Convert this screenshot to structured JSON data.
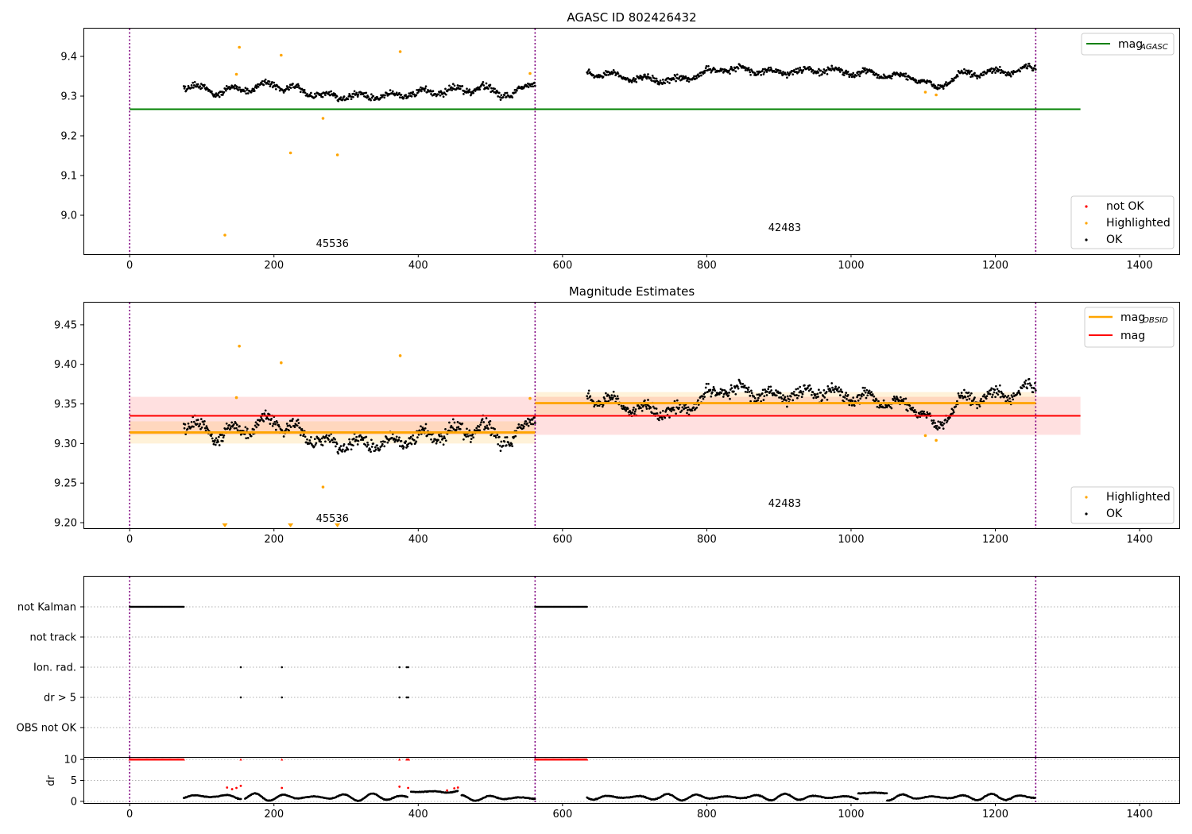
{
  "chart_data": [
    {
      "type": "scatter",
      "title": "AGASC ID 802426432",
      "x_ticks": [
        0,
        200,
        400,
        600,
        800,
        1000,
        1200,
        1400
      ],
      "y_ticks": [
        "9.0",
        "9.1",
        "9.2",
        "9.3",
        "9.4"
      ],
      "xlim": [
        -63,
        1455
      ],
      "ylim": [
        8.902,
        9.47
      ],
      "obsid_boundaries": [
        0,
        562,
        1256
      ],
      "obsid_labels": [
        {
          "text": "45536",
          "x": 281,
          "y": 8.93
        },
        {
          "text": "42483",
          "x": 908,
          "y": 8.97
        }
      ],
      "agasc_mag": {
        "value": 9.267,
        "x_start": 0,
        "x_end": 1318
      },
      "ok_bands": [
        {
          "x_start": 75,
          "x_end": 562,
          "trend": [
            [
              75,
              9.33
            ],
            [
              120,
              9.31
            ],
            [
              200,
              9.33
            ],
            [
              270,
              9.3
            ],
            [
              340,
              9.3
            ],
            [
              420,
              9.31
            ],
            [
              490,
              9.32
            ],
            [
              530,
              9.3
            ],
            [
              562,
              9.34
            ]
          ],
          "spread": 0.012
        },
        {
          "x_start": 634,
          "x_end": 1256,
          "trend": [
            [
              634,
              9.36
            ],
            [
              700,
              9.345
            ],
            [
              760,
              9.34
            ],
            [
              820,
              9.37
            ],
            [
              900,
              9.36
            ],
            [
              960,
              9.365
            ],
            [
              1040,
              9.355
            ],
            [
              1090,
              9.345
            ],
            [
              1120,
              9.32
            ],
            [
              1150,
              9.355
            ],
            [
              1200,
              9.36
            ],
            [
              1256,
              9.37
            ]
          ],
          "spread": 0.011
        }
      ],
      "highlighted": [
        [
          132,
          8.95
        ],
        [
          148,
          9.355
        ],
        [
          152,
          9.423
        ],
        [
          210,
          9.403
        ],
        [
          223,
          9.157
        ],
        [
          268,
          9.244
        ],
        [
          288,
          9.152
        ],
        [
          375,
          9.412
        ],
        [
          555,
          9.357
        ],
        [
          1103,
          9.31
        ],
        [
          1118,
          9.303
        ]
      ],
      "not_ok": [],
      "legends": [
        {
          "position": "upper right",
          "entries": [
            {
              "kind": "line",
              "color": "#008000",
              "label": "mag",
              "subscript": "AGASC"
            }
          ]
        },
        {
          "position": "lower right",
          "entries": [
            {
              "kind": "dot",
              "color": "#ff0000",
              "label": "not OK"
            },
            {
              "kind": "dot",
              "color": "#ffa500",
              "label": "Highlighted"
            },
            {
              "kind": "dot",
              "color": "#000000",
              "label": "OK"
            }
          ]
        }
      ]
    },
    {
      "type": "scatter",
      "title": "Magnitude Estimates",
      "x_ticks": [
        0,
        200,
        400,
        600,
        800,
        1000,
        1200,
        1400
      ],
      "y_ticks": [
        "9.20",
        "9.25",
        "9.30",
        "9.35",
        "9.40",
        "9.45"
      ],
      "xlim": [
        -63,
        1455
      ],
      "ylim": [
        9.193,
        9.478
      ],
      "obsid_boundaries": [
        0,
        562,
        1256
      ],
      "obsid_labels": [
        {
          "text": "45536",
          "x": 281,
          "y": 9.206
        },
        {
          "text": "42483",
          "x": 908,
          "y": 9.225
        }
      ],
      "mag": {
        "value": 9.335,
        "band": [
          9.311,
          9.359
        ],
        "x_start": 0,
        "x_end": 1318
      },
      "mag_obsid": [
        {
          "x_start": 0,
          "x_end": 562,
          "value": 9.314,
          "band": [
            9.3,
            9.328
          ]
        },
        {
          "x_start": 562,
          "x_end": 1256,
          "value": 9.351,
          "band": [
            9.337,
            9.365
          ]
        }
      ],
      "ok_bands": [
        {
          "x_start": 75,
          "x_end": 562,
          "trend": [
            [
              75,
              9.33
            ],
            [
              120,
              9.31
            ],
            [
              200,
              9.33
            ],
            [
              270,
              9.3
            ],
            [
              340,
              9.3
            ],
            [
              420,
              9.31
            ],
            [
              490,
              9.32
            ],
            [
              530,
              9.3
            ],
            [
              562,
              9.34
            ]
          ],
          "spread": 0.012
        },
        {
          "x_start": 634,
          "x_end": 1256,
          "trend": [
            [
              634,
              9.36
            ],
            [
              700,
              9.345
            ],
            [
              760,
              9.34
            ],
            [
              820,
              9.37
            ],
            [
              900,
              9.36
            ],
            [
              960,
              9.365
            ],
            [
              1040,
              9.355
            ],
            [
              1090,
              9.345
            ],
            [
              1120,
              9.32
            ],
            [
              1150,
              9.355
            ],
            [
              1200,
              9.36
            ],
            [
              1256,
              9.37
            ]
          ],
          "spread": 0.011
        }
      ],
      "highlighted": [
        [
          148,
          9.358
        ],
        [
          152,
          9.423
        ],
        [
          210,
          9.402
        ],
        [
          268,
          9.245
        ],
        [
          375,
          9.411
        ],
        [
          555,
          9.357
        ],
        [
          1103,
          9.31
        ],
        [
          1118,
          9.304
        ]
      ],
      "out_of_range_markers": [
        132,
        223,
        288
      ],
      "legends": [
        {
          "position": "upper right",
          "entries": [
            {
              "kind": "line",
              "color": "#ffa500",
              "label": "mag",
              "subscript": "OBSID"
            },
            {
              "kind": "line",
              "color": "#ff0000",
              "label": "mag"
            }
          ]
        },
        {
          "position": "lower right",
          "entries": [
            {
              "kind": "dot",
              "color": "#ffa500",
              "label": "Highlighted"
            },
            {
              "kind": "dot",
              "color": "#000000",
              "label": "OK"
            }
          ]
        }
      ]
    },
    {
      "type": "scatter",
      "xlim": [
        -63,
        1455
      ],
      "obsid_boundaries": [
        0,
        562,
        1256
      ],
      "flag_rows": [
        {
          "label": "not Kalman",
          "ranges": [
            [
              0,
              75
            ],
            [
              562,
              634
            ]
          ],
          "points": []
        },
        {
          "label": "not track",
          "ranges": [],
          "points": []
        },
        {
          "label": "Ion. rad.",
          "ranges": [],
          "points": [
            154,
            211,
            374,
            384,
            386
          ]
        },
        {
          "label": "dr > 5",
          "ranges": [],
          "points": [
            154,
            211,
            374,
            384,
            386
          ]
        },
        {
          "label": "OBS not OK",
          "ranges": [],
          "points": []
        }
      ]
    },
    {
      "type": "scatter",
      "ylabel": "dr",
      "x_ticks": [
        0,
        200,
        400,
        600,
        800,
        1000,
        1200,
        1400
      ],
      "y_ticks": [
        "0",
        "5",
        "10"
      ],
      "xlim": [
        -63,
        1455
      ],
      "ylim": [
        -0.4,
        10.4
      ],
      "obsid_boundaries": [
        0,
        562,
        1256
      ],
      "red_at_10": [
        [
          0,
          75
        ],
        [
          154,
          154
        ],
        [
          211,
          211
        ],
        [
          374,
          374
        ],
        [
          384,
          387
        ],
        [
          562,
          634
        ]
      ],
      "red_low": [
        [
          135,
          3.3
        ],
        [
          142,
          2.9
        ],
        [
          148,
          3.2
        ],
        [
          154,
          3.7
        ],
        [
          211,
          3.2
        ],
        [
          374,
          3.5
        ],
        [
          386,
          3.2
        ],
        [
          440,
          2.6
        ],
        [
          450,
          3.1
        ],
        [
          455,
          3.3
        ]
      ],
      "black_segments": [
        {
          "x_start": 75,
          "x_end": 155,
          "base": 1.2,
          "amp": 0.8
        },
        {
          "x_start": 160,
          "x_end": 385,
          "base": 1.0,
          "amp": 0.9
        },
        {
          "x_start": 390,
          "x_end": 455,
          "base": 2.3,
          "amp": 0.3
        },
        {
          "x_start": 460,
          "x_end": 562,
          "base": 0.8,
          "amp": 0.7
        },
        {
          "x_start": 634,
          "x_end": 1010,
          "base": 1.0,
          "amp": 0.8
        },
        {
          "x_start": 1010,
          "x_end": 1050,
          "base": 2.0,
          "amp": 0.1
        },
        {
          "x_start": 1050,
          "x_end": 1256,
          "base": 1.0,
          "amp": 0.8
        }
      ]
    }
  ]
}
